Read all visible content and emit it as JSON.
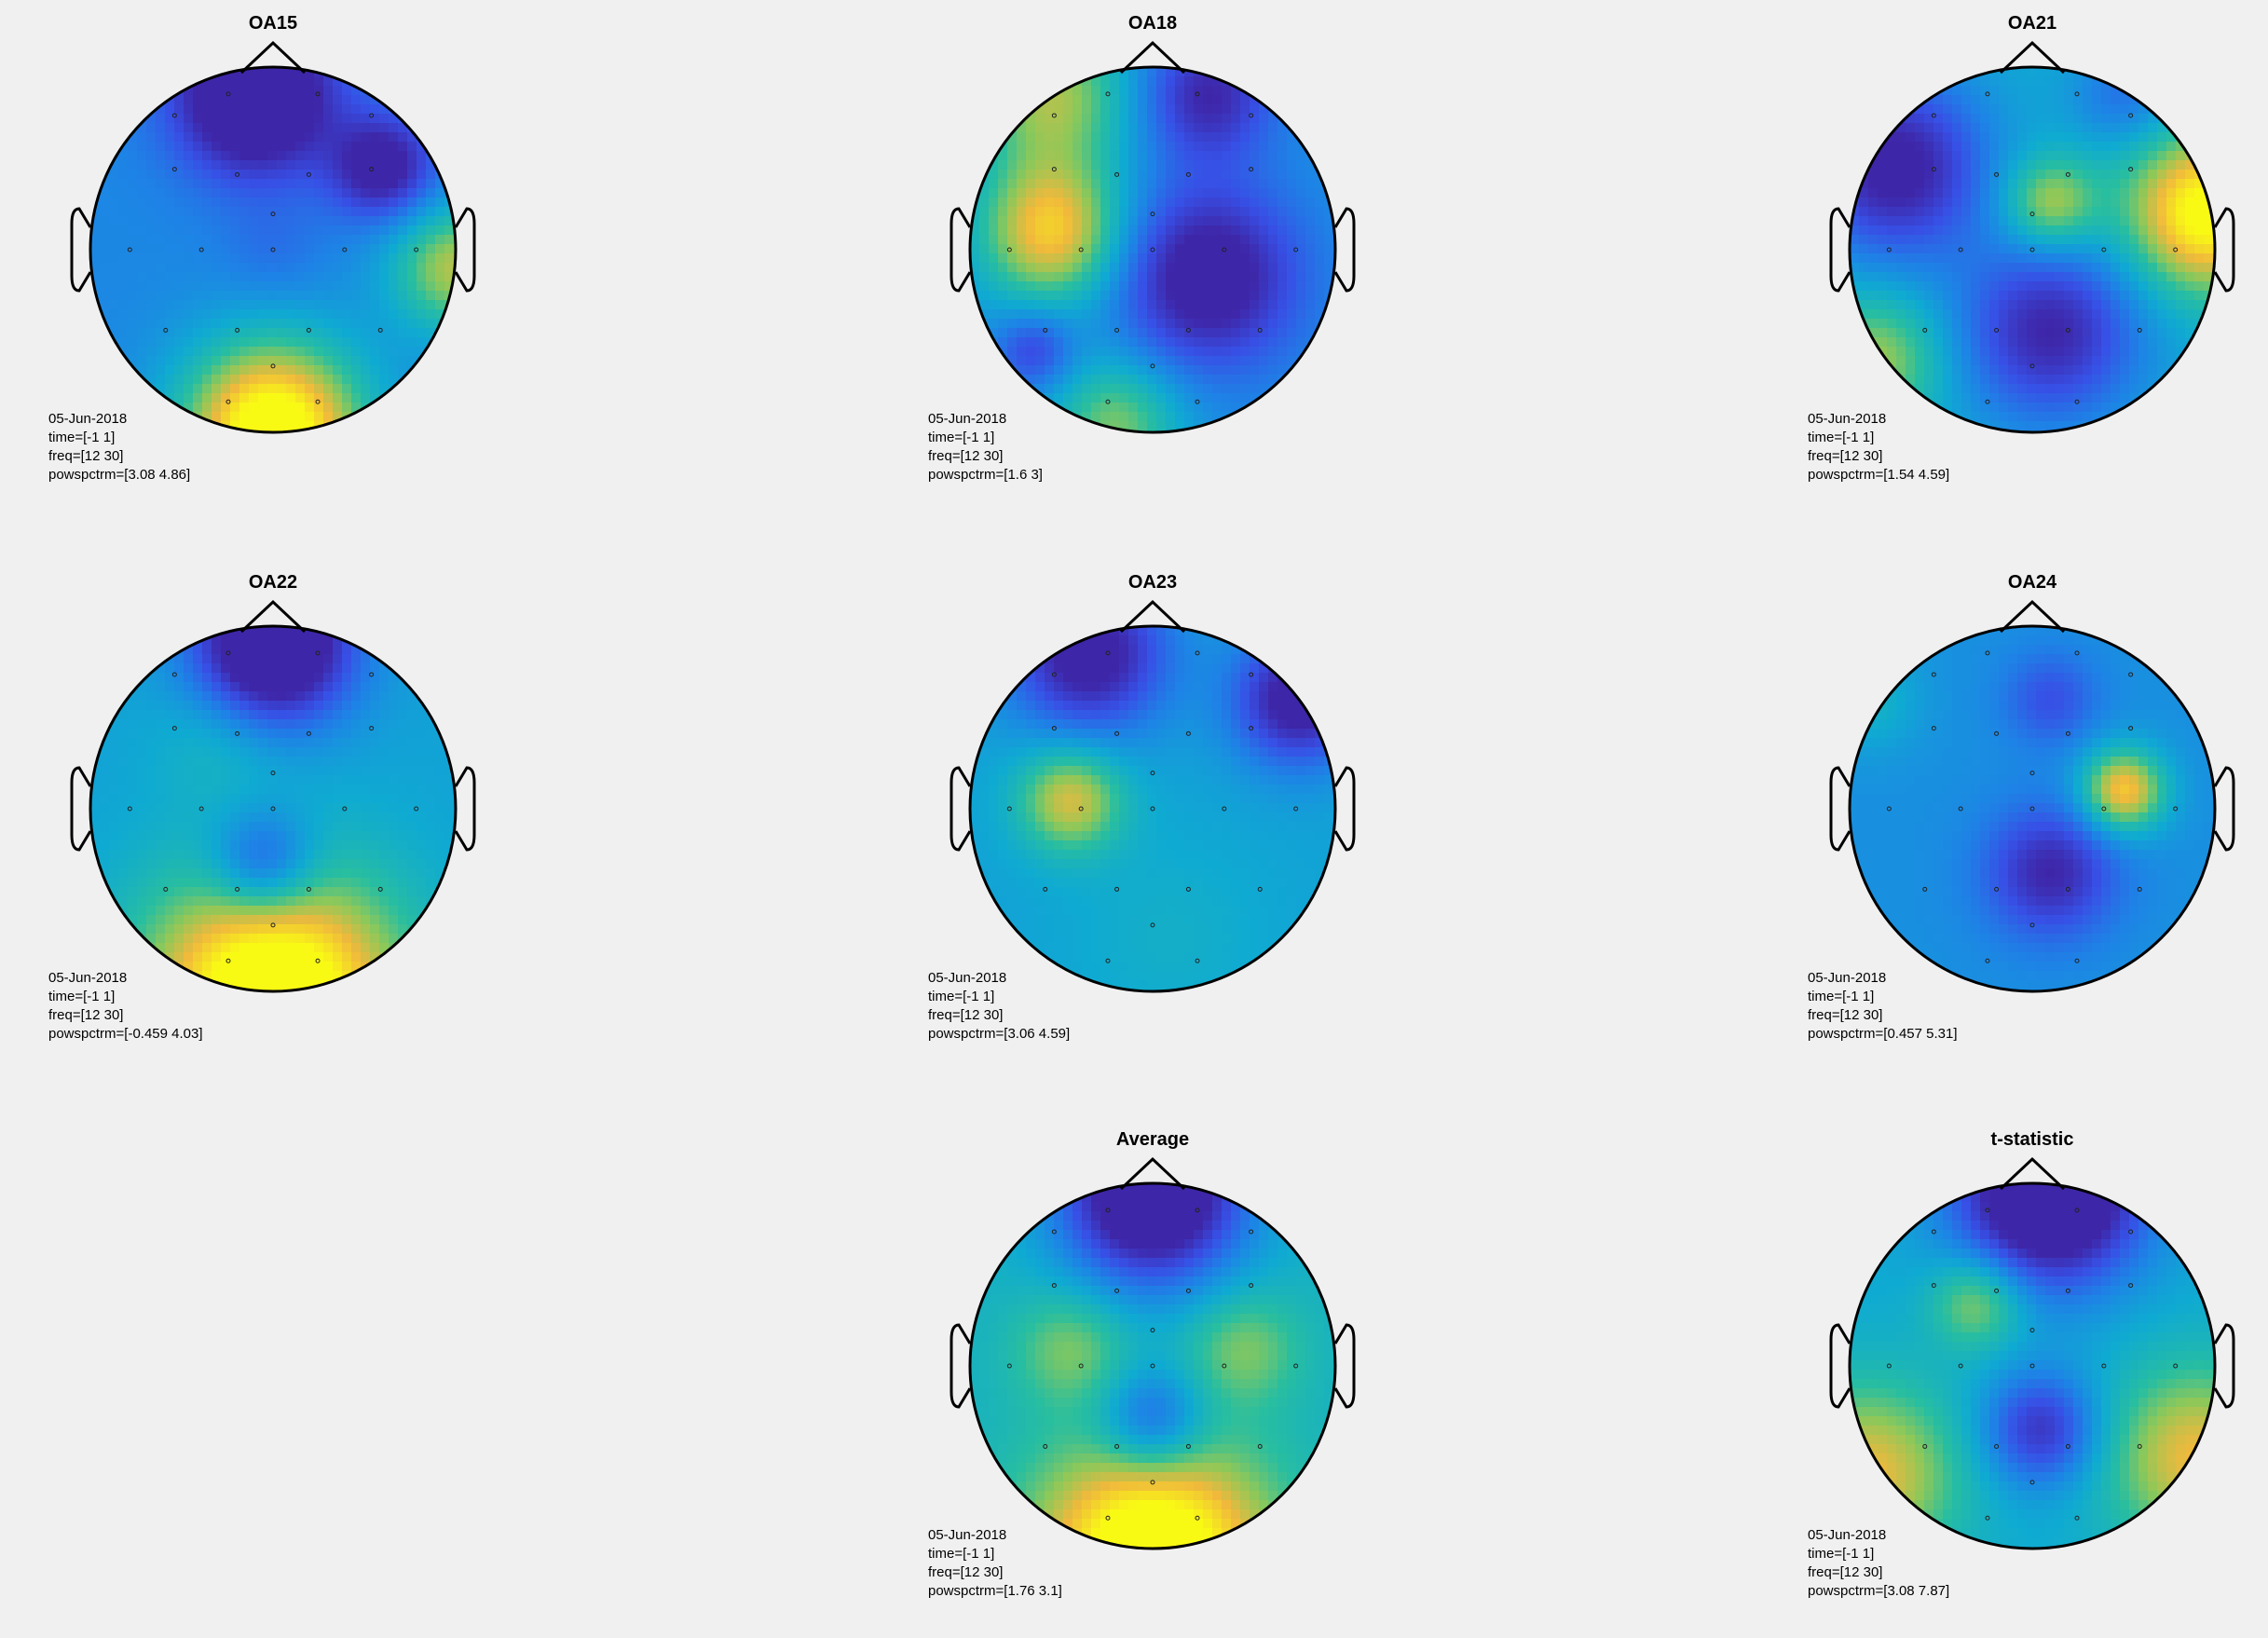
{
  "chart_data": [
    {
      "type": "heatmap",
      "title": "OA15",
      "date": "05-Jun-2018",
      "time": "time=[-1 1]",
      "freq": "freq=[12 30]",
      "range": "powspctrm=[3.08 4.86]",
      "blobs": [
        {
          "cx": -0.1,
          "cy": -0.85,
          "s": 0.3,
          "a": -1.2
        },
        {
          "cx": 0.6,
          "cy": -0.45,
          "s": 0.2,
          "a": -0.8
        },
        {
          "cx": 0,
          "cy": 1,
          "s": 0.35,
          "a": 1.6
        },
        {
          "cx": 1,
          "cy": 0.1,
          "s": 0.25,
          "a": 0.9
        },
        {
          "cx": 0,
          "cy": 0,
          "s": 0.2,
          "a": -0.15
        }
      ],
      "base": 0.32
    },
    {
      "type": "heatmap",
      "title": "OA18",
      "date": "05-Jun-2018",
      "time": "time=[-1 1]",
      "freq": "freq=[12 30]",
      "range": "powspctrm=[1.6 3]",
      "blobs": [
        {
          "cx": -0.55,
          "cy": -0.1,
          "s": 0.28,
          "a": 1.1
        },
        {
          "cx": -0.55,
          "cy": -0.85,
          "s": 0.3,
          "a": 0.8
        },
        {
          "cx": 0.3,
          "cy": 0.15,
          "s": 0.35,
          "a": -0.9
        },
        {
          "cx": 0.3,
          "cy": -0.85,
          "s": 0.25,
          "a": -0.7
        },
        {
          "cx": -0.2,
          "cy": 0.95,
          "s": 0.25,
          "a": 0.7
        },
        {
          "cx": -0.65,
          "cy": 0.55,
          "s": 0.15,
          "a": -0.5
        }
      ],
      "base": 0.35
    },
    {
      "type": "heatmap",
      "title": "OA21",
      "date": "05-Jun-2018",
      "time": "time=[-1 1]",
      "freq": "freq=[12 30]",
      "range": "powspctrm=[1.54 4.59]",
      "blobs": [
        {
          "cx": -0.75,
          "cy": -0.45,
          "s": 0.35,
          "a": -1
        },
        {
          "cx": 0.95,
          "cy": -0.2,
          "s": 0.3,
          "a": 1.2
        },
        {
          "cx": 0.1,
          "cy": -0.25,
          "s": 0.18,
          "a": 0.7
        },
        {
          "cx": 0.1,
          "cy": 0.45,
          "s": 0.35,
          "a": -0.9
        },
        {
          "cx": -0.85,
          "cy": 0.6,
          "s": 0.25,
          "a": 0.6
        },
        {
          "cx": 0.5,
          "cy": -0.85,
          "s": 0.2,
          "a": -0.4
        }
      ],
      "base": 0.45
    },
    {
      "type": "heatmap",
      "title": "OA22",
      "date": "05-Jun-2018",
      "time": "time=[-1 1]",
      "freq": "freq=[12 30]",
      "range": "powspctrm=[-0.459 4.03]",
      "blobs": [
        {
          "cx": 0,
          "cy": -0.9,
          "s": 0.3,
          "a": -1.4
        },
        {
          "cx": 0,
          "cy": 1.05,
          "s": 0.5,
          "a": 1.5
        },
        {
          "cx": -0.05,
          "cy": 0.3,
          "s": 0.2,
          "a": -0.7
        },
        {
          "cx": -0.3,
          "cy": -0.4,
          "s": 0.25,
          "a": 0.2
        }
      ],
      "base": 0.42
    },
    {
      "type": "heatmap",
      "title": "OA23",
      "date": "05-Jun-2018",
      "time": "time=[-1 1]",
      "freq": "freq=[12 30]",
      "range": "powspctrm=[3.06 4.59]",
      "blobs": [
        {
          "cx": -0.45,
          "cy": -0.05,
          "s": 0.2,
          "a": 0.8
        },
        {
          "cx": -0.35,
          "cy": -0.85,
          "s": 0.3,
          "a": -1
        },
        {
          "cx": 0.8,
          "cy": -0.6,
          "s": 0.25,
          "a": -1
        },
        {
          "cx": 0.1,
          "cy": 0.7,
          "s": 0.4,
          "a": 0.12
        }
      ],
      "base": 0.42
    },
    {
      "type": "heatmap",
      "title": "OA24",
      "date": "05-Jun-2018",
      "time": "time=[-1 1]",
      "freq": "freq=[12 30]",
      "range": "powspctrm=[0.457 5.31]",
      "blobs": [
        {
          "cx": 0.5,
          "cy": -0.1,
          "s": 0.16,
          "a": 1.1
        },
        {
          "cx": 0.1,
          "cy": 0.35,
          "s": 0.25,
          "a": -0.7
        },
        {
          "cx": 0.1,
          "cy": -0.6,
          "s": 0.18,
          "a": -0.4
        },
        {
          "cx": -0.9,
          "cy": -0.6,
          "s": 0.2,
          "a": 0.3
        }
      ],
      "base": 0.35
    },
    {
      "type": "heatmap",
      "title": "Average",
      "date": "05-Jun-2018",
      "time": "time=[-1 1]",
      "freq": "freq=[12 30]",
      "range": "powspctrm=[1.76 3.1]",
      "blobs": [
        {
          "cx": 0,
          "cy": -0.95,
          "s": 0.35,
          "a": -1.5
        },
        {
          "cx": 0,
          "cy": 0.3,
          "s": 0.2,
          "a": -0.7
        },
        {
          "cx": 0,
          "cy": 1.05,
          "s": 0.45,
          "a": 1.3
        },
        {
          "cx": -0.45,
          "cy": -0.1,
          "s": 0.22,
          "a": 0.4
        },
        {
          "cx": 0.5,
          "cy": -0.1,
          "s": 0.22,
          "a": 0.4
        }
      ],
      "base": 0.5
    },
    {
      "type": "heatmap",
      "title": "t-statistic",
      "date": "05-Jun-2018",
      "time": "time=[-1 1]",
      "freq": "freq=[12 30]",
      "range": "powspctrm=[3.08 7.87]",
      "blobs": [
        {
          "cx": 0.1,
          "cy": -0.95,
          "s": 0.35,
          "a": -1.5
        },
        {
          "cx": 0.05,
          "cy": 0.35,
          "s": 0.22,
          "a": -0.8
        },
        {
          "cx": -0.3,
          "cy": -0.35,
          "s": 0.18,
          "a": 0.6
        },
        {
          "cx": -0.9,
          "cy": 0.6,
          "s": 0.35,
          "a": 0.8
        },
        {
          "cx": 0.9,
          "cy": 0.5,
          "s": 0.35,
          "a": 0.8
        }
      ],
      "base": 0.45
    }
  ],
  "electrodes": [
    [
      -0.25,
      -0.87
    ],
    [
      0.25,
      -0.87
    ],
    [
      -0.55,
      -0.45
    ],
    [
      -0.2,
      -0.42
    ],
    [
      0.2,
      -0.42
    ],
    [
      0.55,
      -0.45
    ],
    [
      0,
      -0.2
    ],
    [
      -0.8,
      0
    ],
    [
      -0.4,
      0
    ],
    [
      0,
      0
    ],
    [
      0.4,
      0
    ],
    [
      0.8,
      0
    ],
    [
      -0.6,
      0.45
    ],
    [
      -0.2,
      0.45
    ],
    [
      0.2,
      0.45
    ],
    [
      0.6,
      0.45
    ],
    [
      0,
      0.65
    ],
    [
      -0.25,
      0.85
    ],
    [
      0.25,
      0.85
    ],
    [
      -0.55,
      -0.75
    ],
    [
      0.55,
      -0.75
    ]
  ]
}
